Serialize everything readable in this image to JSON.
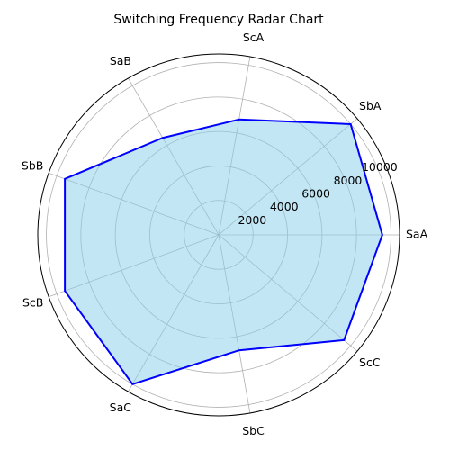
{
  "chart_data": {
    "type": "radar",
    "title": "Switching Frequency Radar Chart",
    "categories": [
      "SaA",
      "SbA",
      "ScA",
      "SaB",
      "SbB",
      "ScB",
      "SaC",
      "SbC",
      "ScC"
    ],
    "series": [
      {
        "values": [
          9500,
          10000,
          6800,
          6500,
          9500,
          9500,
          10000,
          6800,
          9500
        ]
      }
    ],
    "radial_ticks": [
      2000,
      4000,
      6000,
      8000,
      10000
    ],
    "rlim": [
      0,
      10500
    ],
    "grid": true,
    "line_color": "#0000ff",
    "fill_color": "#87ceeb",
    "grid_color": "#b0b0b0"
  }
}
